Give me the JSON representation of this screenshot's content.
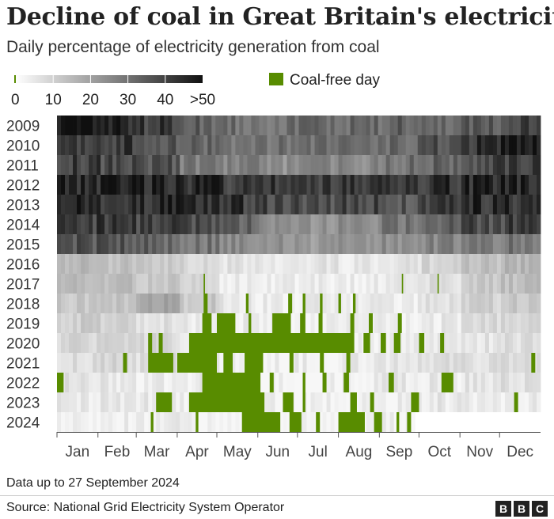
{
  "title": "Decline of coal in Great Britain's electricity",
  "subtitle": "Daily percentage of electricity generation from coal",
  "note": "Data up to 27 September 2024",
  "source": "Source: National Grid Electricity System Operator",
  "logo": [
    "B",
    "B",
    "C"
  ],
  "colors": {
    "coal_free": "#588c00",
    "max_coal": "#111111",
    "min_coal": "#f7f7f7",
    "axis": "#555555"
  },
  "chart_data": {
    "type": "heatmap",
    "title": "Decline of coal in Great Britain's electricity",
    "subtitle": "Daily percentage of electricity generation from coal",
    "x_label": "",
    "y_label": "",
    "months": [
      "Jan",
      "Feb",
      "Mar",
      "Apr",
      "May",
      "Jun",
      "Jul",
      "Aug",
      "Sep",
      "Oct",
      "Nov",
      "Dec"
    ],
    "years": [
      "2009",
      "2010",
      "2011",
      "2012",
      "2013",
      "2014",
      "2015",
      "2016",
      "2017",
      "2018",
      "2019",
      "2020",
      "2021",
      "2022",
      "2023",
      "2024"
    ],
    "legend": {
      "scale_ticks": [
        "0",
        "10",
        "20",
        "30",
        "40",
        ">50"
      ],
      "scale_range": [
        0,
        50
      ],
      "coal_free_label": "Coal-free day"
    },
    "data_end": "2024-09-27",
    "monthly_coal_percent": {
      "2009": [
        50,
        46,
        40,
        33,
        30,
        29,
        31,
        30,
        32,
        30,
        33,
        40
      ],
      "2010": [
        43,
        40,
        36,
        31,
        27,
        29,
        30,
        29,
        31,
        35,
        43,
        46
      ],
      "2011": [
        41,
        38,
        35,
        27,
        25,
        22,
        24,
        24,
        29,
        31,
        38,
        40
      ],
      "2012": [
        45,
        46,
        46,
        44,
        42,
        41,
        40,
        42,
        40,
        43,
        46,
        47
      ],
      "2013": [
        44,
        44,
        45,
        43,
        41,
        38,
        37,
        38,
        36,
        40,
        43,
        44
      ],
      "2014": [
        40,
        39,
        39,
        36,
        32,
        24,
        22,
        24,
        28,
        32,
        37,
        39
      ],
      "2015": [
        35,
        34,
        32,
        28,
        24,
        22,
        20,
        21,
        23,
        25,
        27,
        28
      ],
      "2016": [
        14,
        12,
        10,
        7,
        4,
        3,
        4,
        3,
        4,
        7,
        12,
        14
      ],
      "2017": [
        14,
        12,
        10,
        6,
        3,
        2,
        2,
        2,
        3,
        5,
        10,
        12
      ],
      "2018": [
        10,
        11,
        18,
        10,
        3,
        2,
        2,
        2,
        2,
        4,
        8,
        10
      ],
      "2019": [
        9,
        8,
        5,
        3,
        2,
        1,
        1,
        2,
        2,
        3,
        6,
        7
      ],
      "2020": [
        7,
        8,
        6,
        2,
        1,
        1,
        1,
        1,
        2,
        3,
        4,
        5
      ],
      "2021": [
        6,
        7,
        5,
        3,
        2,
        2,
        2,
        3,
        4,
        5,
        5,
        5
      ],
      "2022": [
        4,
        3,
        2,
        2,
        1,
        1,
        1,
        2,
        3,
        3,
        4,
        5
      ],
      "2023": [
        3,
        3,
        3,
        2,
        1,
        1,
        1,
        1,
        2,
        3,
        2,
        2
      ],
      "2024": [
        2,
        2,
        2,
        1,
        1,
        1,
        1,
        1,
        1,
        null,
        null,
        null
      ]
    },
    "coal_free_periods": {
      "2009": [],
      "2010": [],
      "2011": [],
      "2012": [],
      "2013": [],
      "2014": [],
      "2015": [],
      "2016": [],
      "2017": [
        [
          "Apr-21",
          "Apr-21"
        ],
        [
          "Sep-18",
          "Sep-18"
        ],
        [
          "Oct-15",
          "Oct-15"
        ]
      ],
      "2018": [
        [
          "Apr-21",
          "Apr-23"
        ],
        [
          "May-23",
          "May-24"
        ],
        [
          "Jun-24",
          "Jun-26"
        ],
        [
          "Jul-05",
          "Jul-06"
        ],
        [
          "Jul-18",
          "Jul-19"
        ],
        [
          "Aug-01",
          "Aug-02"
        ],
        [
          "Aug-12",
          "Aug-13"
        ]
      ],
      "2019": [
        [
          "Apr-20",
          "Apr-26"
        ],
        [
          "May-01",
          "May-14"
        ],
        [
          "May-25",
          "May-26"
        ],
        [
          "Jun-12",
          "Jun-25"
        ],
        [
          "Jul-03",
          "Jul-06"
        ],
        [
          "Jul-17",
          "Jul-19"
        ],
        [
          "Aug-10",
          "Aug-12"
        ],
        [
          "Aug-24",
          "Aug-26"
        ],
        [
          "Sep-15",
          "Sep-17"
        ]
      ],
      "2020": [
        [
          "Mar-10",
          "Mar-12"
        ],
        [
          "Mar-18",
          "Mar-20"
        ],
        [
          "Apr-10",
          "Jun-15"
        ],
        [
          "Jun-16",
          "Aug-12"
        ],
        [
          "Aug-20",
          "Aug-24"
        ],
        [
          "Sep-02",
          "Sep-05"
        ],
        [
          "Sep-12",
          "Sep-16"
        ],
        [
          "Oct-01",
          "Oct-04"
        ],
        [
          "Oct-17",
          "Oct-19"
        ]
      ],
      "2021": [
        [
          "Feb-20",
          "Feb-22"
        ],
        [
          "Mar-10",
          "Mar-28"
        ],
        [
          "Apr-01",
          "Apr-30"
        ],
        [
          "May-06",
          "May-12"
        ],
        [
          "May-22",
          "Jun-04"
        ],
        [
          "Jun-25",
          "Jun-27"
        ],
        [
          "Jul-18",
          "Jul-20"
        ],
        [
          "Aug-07",
          "Aug-09"
        ],
        [
          "Dec-25",
          "Dec-27"
        ]
      ],
      "2022": [
        [
          "Jan-01",
          "Jan-05"
        ],
        [
          "Apr-20",
          "Jun-02"
        ],
        [
          "Jun-10",
          "Jun-12"
        ],
        [
          "Jul-05",
          "Jul-06"
        ],
        [
          "Jul-20",
          "Jul-22"
        ],
        [
          "Aug-05",
          "Aug-08"
        ],
        [
          "Sep-08",
          "Sep-11"
        ],
        [
          "Oct-18",
          "Oct-26"
        ]
      ],
      "2023": [
        [
          "Mar-16",
          "Mar-27"
        ],
        [
          "Apr-10",
          "Jun-05"
        ],
        [
          "Jun-20",
          "Jun-27"
        ],
        [
          "Jul-05",
          "Jul-06"
        ],
        [
          "Aug-10",
          "Aug-14"
        ],
        [
          "Aug-25",
          "Aug-27"
        ],
        [
          "Sep-25",
          "Sep-30"
        ],
        [
          "Dec-12",
          "Dec-14"
        ]
      ],
      "2024": [
        [
          "Mar-12",
          "Mar-13"
        ],
        [
          "Apr-15",
          "Apr-16"
        ],
        [
          "May-20",
          "Jun-17"
        ],
        [
          "Jun-25",
          "Jul-03"
        ],
        [
          "Jul-15",
          "Jul-17"
        ],
        [
          "Aug-01",
          "Aug-20"
        ],
        [
          "Aug-28",
          "Sep-02"
        ],
        [
          "Sep-14",
          "Sep-15"
        ],
        [
          "Sep-22",
          "Sep-24"
        ]
      ]
    }
  }
}
